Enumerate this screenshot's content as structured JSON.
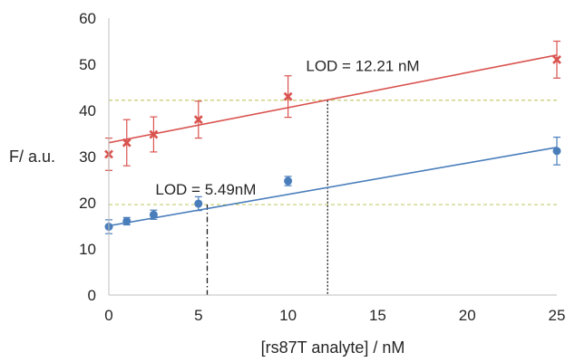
{
  "chart_data": {
    "type": "scatter",
    "xlabel": "[rs87T analyte] / nM",
    "ylabel": "F/ a.u.",
    "xlim": [
      0,
      25
    ],
    "ylim": [
      0,
      60
    ],
    "x_ticks": [
      "0",
      "5",
      "10",
      "15",
      "20",
      "25"
    ],
    "y_ticks": [
      "0",
      "10",
      "20",
      "30",
      "40",
      "50",
      "60"
    ],
    "grid": false,
    "legend": "none",
    "series": [
      {
        "marker": "x",
        "color": "#d9534f",
        "points": [
          {
            "x": 0,
            "y": 30.5,
            "err": 3.5
          },
          {
            "x": 1,
            "y": 33.0,
            "err": 5.0
          },
          {
            "x": 2.5,
            "y": 34.8,
            "err": 3.8
          },
          {
            "x": 5,
            "y": 38.0,
            "err": 4.0
          },
          {
            "x": 10,
            "y": 43.0,
            "err": 4.5
          },
          {
            "x": 25,
            "y": 51.0,
            "err": 4.0
          }
        ],
        "fit": {
          "x0": 0,
          "y0": 33.0,
          "x1": 25,
          "y1": 52.0
        }
      },
      {
        "marker": "circle",
        "color": "#4a7ebb",
        "points": [
          {
            "x": 0,
            "y": 14.8,
            "err": 1.5
          },
          {
            "x": 1,
            "y": 16.0,
            "err": 0.8
          },
          {
            "x": 2.5,
            "y": 17.4,
            "err": 1.0
          },
          {
            "x": 5,
            "y": 19.8,
            "err": 1.5
          },
          {
            "x": 10,
            "y": 24.7,
            "err": 1.0
          },
          {
            "x": 25,
            "y": 31.2,
            "err": 3.0
          }
        ],
        "fit": {
          "x0": 0,
          "y0": 15.0,
          "x1": 25,
          "y1": 32.0
        }
      }
    ],
    "threshold_lines": [
      {
        "y": 42.2,
        "color": "#c5cc6e"
      },
      {
        "y": 19.6,
        "color": "#c5cc6e"
      }
    ],
    "lod_markers": [
      {
        "x": 12.21,
        "y": 42.2,
        "style": "dotted"
      },
      {
        "x": 5.49,
        "y": 19.6,
        "style": "dashdot"
      }
    ],
    "annotations": [
      {
        "text": "LOD = 12.21 nM",
        "x": 11.0,
        "y": 48.5
      },
      {
        "text": "LOD = 5.49nM",
        "x": 2.6,
        "y": 21.8
      }
    ]
  }
}
